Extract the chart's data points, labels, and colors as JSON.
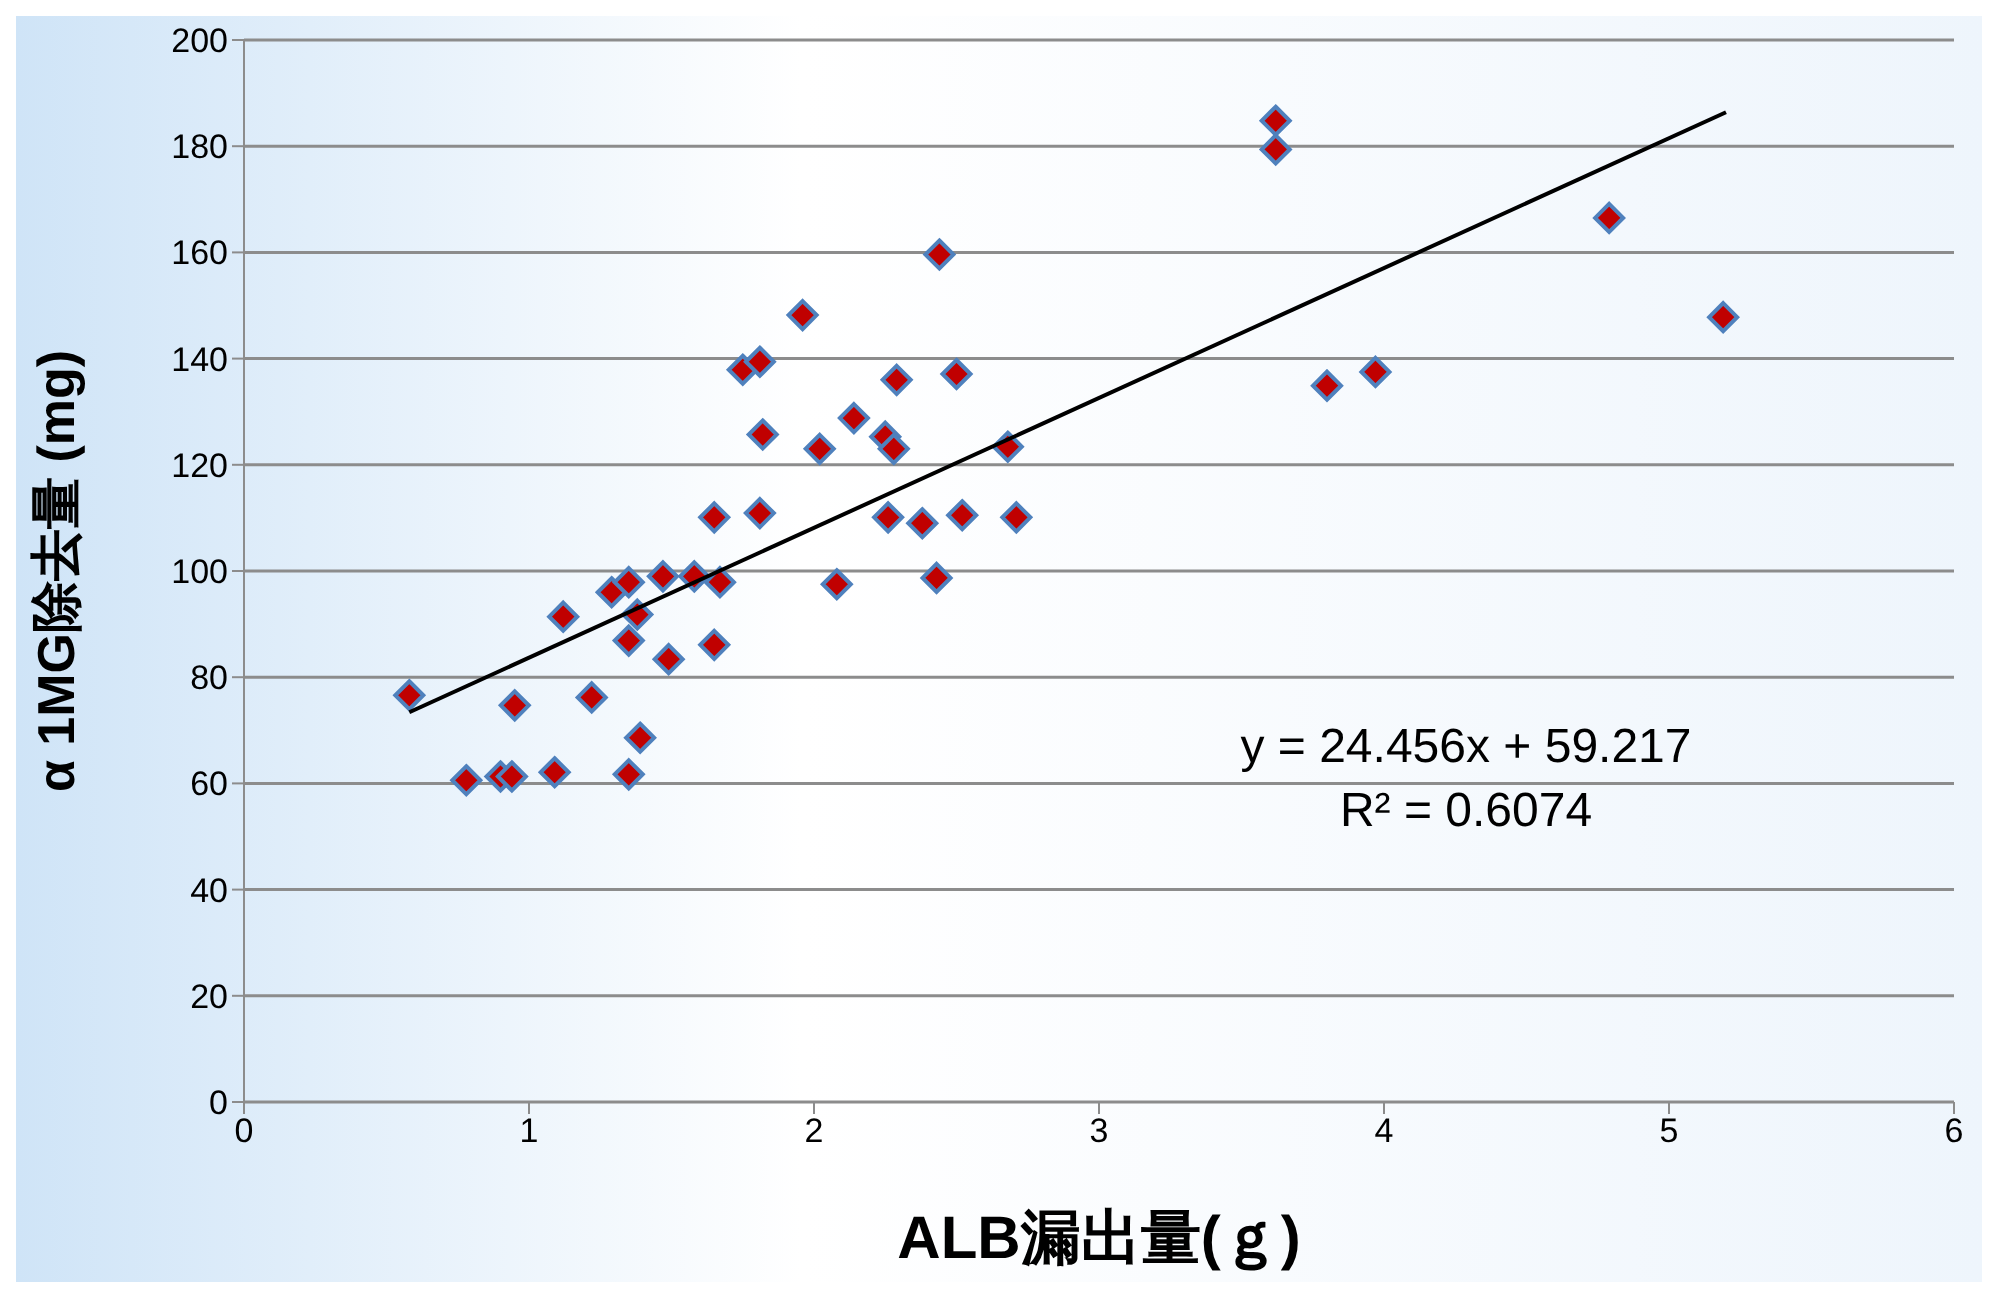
{
  "chart_data": {
    "type": "scatter",
    "xlabel": "ALB漏出量(ｇ)",
    "ylabel": "α 1MG除去量 (mg)",
    "xlim": [
      0,
      6
    ],
    "xticks": [
      0,
      1,
      2,
      3,
      4,
      5,
      6
    ],
    "ylim": [
      0,
      200
    ],
    "yticks": [
      0,
      20,
      40,
      60,
      80,
      100,
      120,
      140,
      160,
      180,
      200
    ],
    "grid": "y",
    "annotations": [
      "y = 24.456x + 59.217",
      "R² = 0.6074"
    ],
    "series": [
      {
        "marker": "diamond",
        "color": "#c00000",
        "x": [
          0.58,
          0.78,
          0.9,
          0.94,
          0.95,
          1.09,
          1.12,
          1.22,
          1.29,
          1.35,
          1.35,
          1.35,
          1.38,
          1.39,
          1.47,
          1.49,
          1.58,
          1.65,
          1.65,
          1.67,
          1.75,
          1.81,
          1.81,
          1.82,
          1.96,
          2.02,
          2.08,
          2.14,
          2.25,
          2.28,
          2.26,
          2.29,
          2.38,
          2.43,
          2.44,
          2.5,
          2.52,
          2.68,
          2.71,
          3.62,
          3.62,
          3.8,
          3.97,
          4.79,
          5.19
        ],
        "values": [
          76.6,
          60.6,
          61.3,
          61.3,
          74.7,
          62.1,
          91.4,
          76.2,
          96,
          86.9,
          97.9,
          61.7,
          91.8,
          68.6,
          99,
          83.4,
          99,
          110.1,
          86.1,
          97.9,
          137.9,
          139.4,
          110.9,
          125.7,
          148.2,
          123,
          97.5,
          128.8,
          125.3,
          123,
          110.1,
          136,
          109,
          98.7,
          159.6,
          137.1,
          110.5,
          123.4,
          110.1,
          184.8,
          179.4,
          134.9,
          137.5,
          166.5,
          147.8
        ]
      },
      {
        "type": "line",
        "marker": "none",
        "color": "#000000",
        "x": [
          0.58,
          5.2
        ],
        "values": [
          73.4,
          186.4
        ]
      }
    ]
  }
}
